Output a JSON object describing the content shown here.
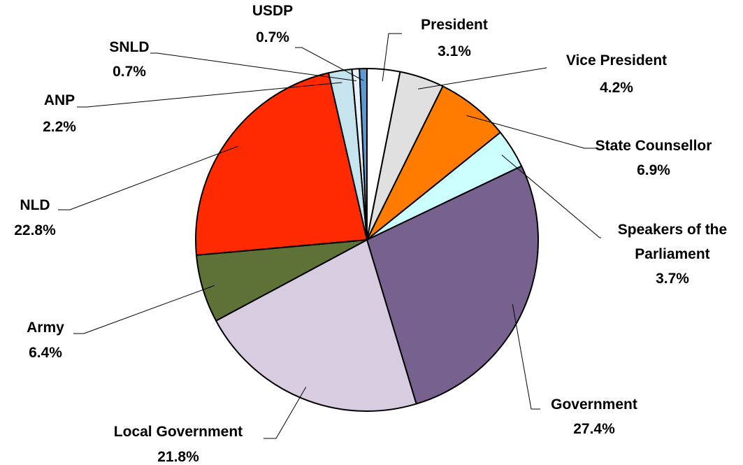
{
  "chart_data": {
    "type": "pie",
    "start_angle_deg": 0,
    "direction": "clockwise",
    "slices": [
      {
        "name": "President",
        "value": 3.1,
        "label": "3.1%",
        "color": "#ffffff"
      },
      {
        "name": "Vice President",
        "value": 4.2,
        "label": "4.2%",
        "color": "#e0e0e0"
      },
      {
        "name": "State Counsellor",
        "value": 6.9,
        "label": "6.9%",
        "color": "#ff7c00"
      },
      {
        "name": "Speakers of the Parliament",
        "value": 3.7,
        "label": "3.7%",
        "color": "#ccffff"
      },
      {
        "name": "Government",
        "value": 27.4,
        "label": "27.4%",
        "color": "#76618f"
      },
      {
        "name": "Local Government",
        "value": 21.8,
        "label": "21.8%",
        "color": "#d8cce0"
      },
      {
        "name": "Army",
        "value": 6.4,
        "label": "6.4%",
        "color": "#5e7136"
      },
      {
        "name": "NLD",
        "value": 22.8,
        "label": "22.8%",
        "color": "#ff2a00"
      },
      {
        "name": "ANP",
        "value": 2.2,
        "label": "2.2%",
        "color": "#c6e4ee"
      },
      {
        "name": "SNLD",
        "value": 0.7,
        "label": "0.7%",
        "color": "#e6f2f8"
      },
      {
        "name": "USDP",
        "value": 0.7,
        "label": "0.7%",
        "color": "#5b9bd5"
      }
    ]
  }
}
